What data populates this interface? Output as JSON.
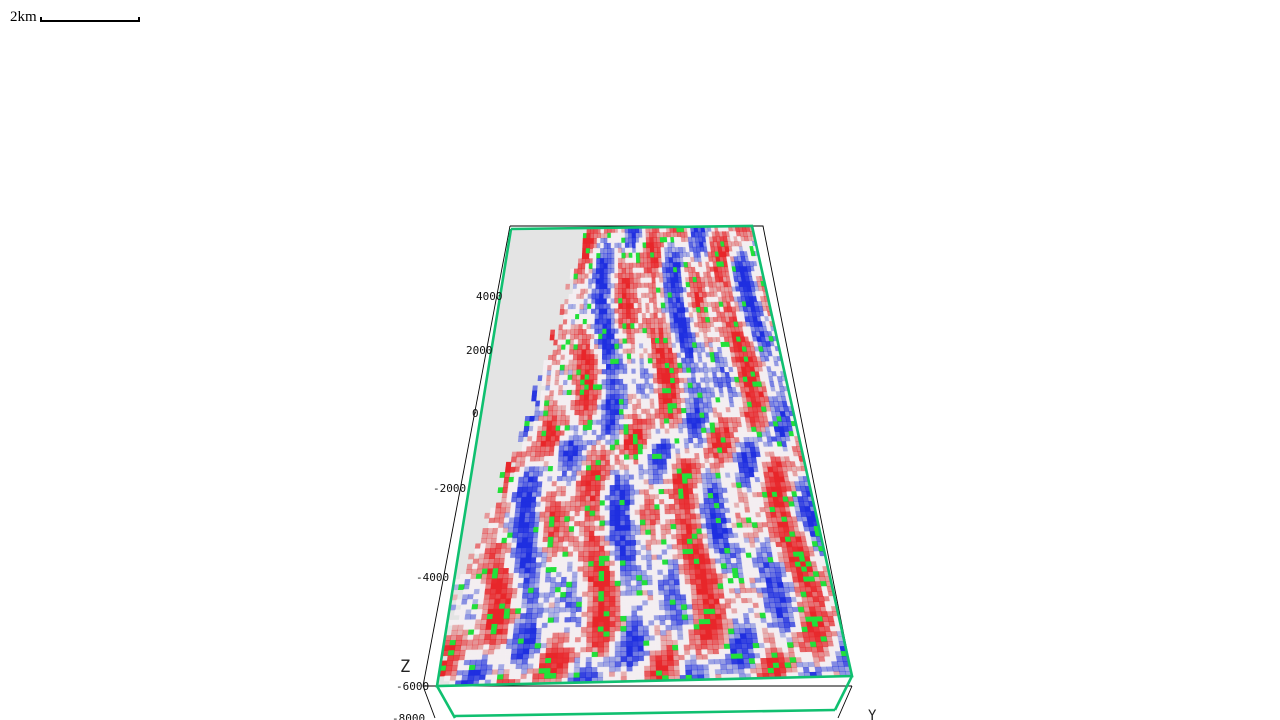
{
  "scale_bar": {
    "label": "2km"
  },
  "axes": {
    "z_name": "Z",
    "y_name": "Y",
    "z_ticks": [
      "4000",
      "2000",
      "0",
      "-2000",
      "-4000",
      "-6000",
      "-8000"
    ]
  },
  "colors": {
    "positive": "#e8262a",
    "negative": "#1f2fe0",
    "highlight": "#22e03a",
    "bounding_box": "#10c070",
    "outline": "#000000",
    "background_slice": "#e4e4e4"
  }
}
